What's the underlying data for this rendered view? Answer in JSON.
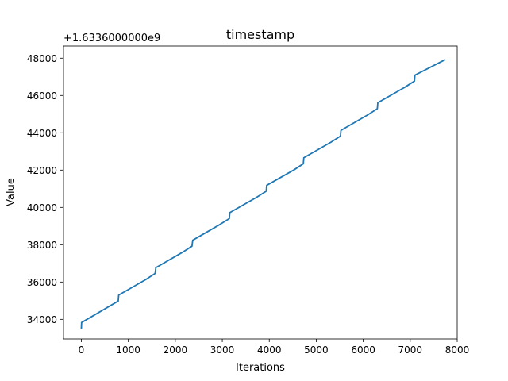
{
  "chart_data": {
    "type": "line",
    "title": "timestamp",
    "xlabel": "Iterations",
    "ylabel": "Value",
    "y_offset_label": "+1.6336000000e9",
    "xlim": [
      -380,
      8000
    ],
    "ylim": [
      32950,
      48650
    ],
    "xticks": [
      0,
      1000,
      2000,
      3000,
      4000,
      5000,
      6000,
      7000,
      8000
    ],
    "yticks": [
      34000,
      36000,
      38000,
      40000,
      42000,
      44000,
      46000,
      48000
    ],
    "grid": false,
    "line_color": "#1f77b4",
    "series": [
      {
        "x": [
          0,
          5,
          560,
          785,
          795,
          1370,
          1570,
          1585,
          2150,
          2355,
          2370,
          2940,
          3150,
          3160,
          3730,
          3935,
          3945,
          4525,
          4725,
          4735,
          5310,
          5515,
          5525,
          6095,
          6300,
          6310,
          6885,
          7090,
          7100,
          7730
        ],
        "y": [
          33520,
          33830,
          34650,
          34980,
          35300,
          36130,
          36460,
          36770,
          37590,
          37920,
          38240,
          39070,
          39400,
          39720,
          40540,
          40870,
          41180,
          42010,
          42340,
          42660,
          43490,
          43820,
          44130,
          44960,
          45290,
          45610,
          46440,
          46770,
          47090,
          47900
        ]
      }
    ]
  }
}
